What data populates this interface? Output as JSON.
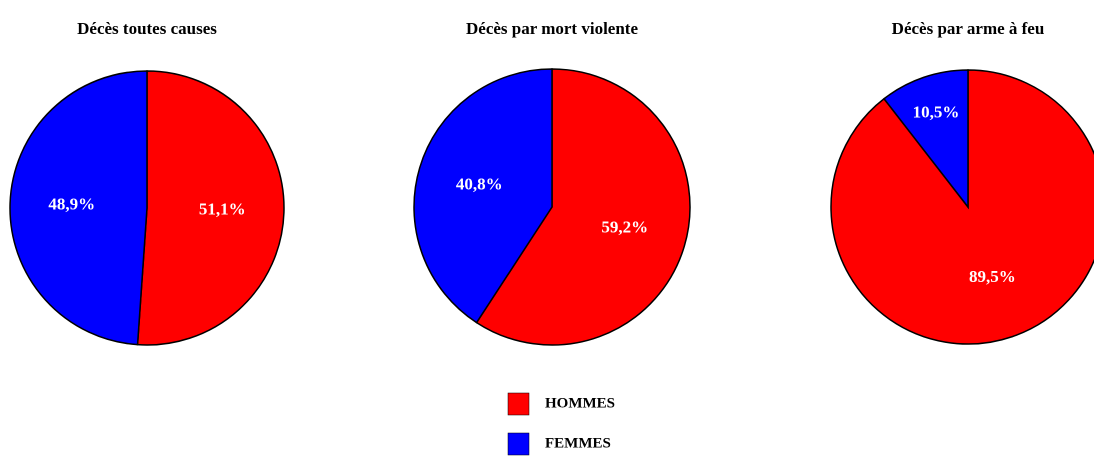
{
  "chart_data": [
    {
      "type": "pie",
      "title": "Décès toutes causes",
      "categories": [
        "HOMMES",
        "FEMMES"
      ],
      "values": [
        51.1,
        48.9
      ],
      "value_labels": [
        "51,1%",
        "48,9%"
      ],
      "colors": [
        "#ff0000",
        "#0000ff"
      ]
    },
    {
      "type": "pie",
      "title": "Décès par mort violente",
      "categories": [
        "HOMMES",
        "FEMMES"
      ],
      "values": [
        59.2,
        40.8
      ],
      "value_labels": [
        "59,2%",
        "40,8%"
      ],
      "colors": [
        "#ff0000",
        "#0000ff"
      ]
    },
    {
      "type": "pie",
      "title": "Décès par arme à feu",
      "categories": [
        "HOMMES",
        "FEMMES"
      ],
      "values": [
        89.5,
        10.5
      ],
      "value_labels": [
        "89,5%",
        "10,5%"
      ],
      "colors": [
        "#ff0000",
        "#0000ff"
      ]
    }
  ]
}
